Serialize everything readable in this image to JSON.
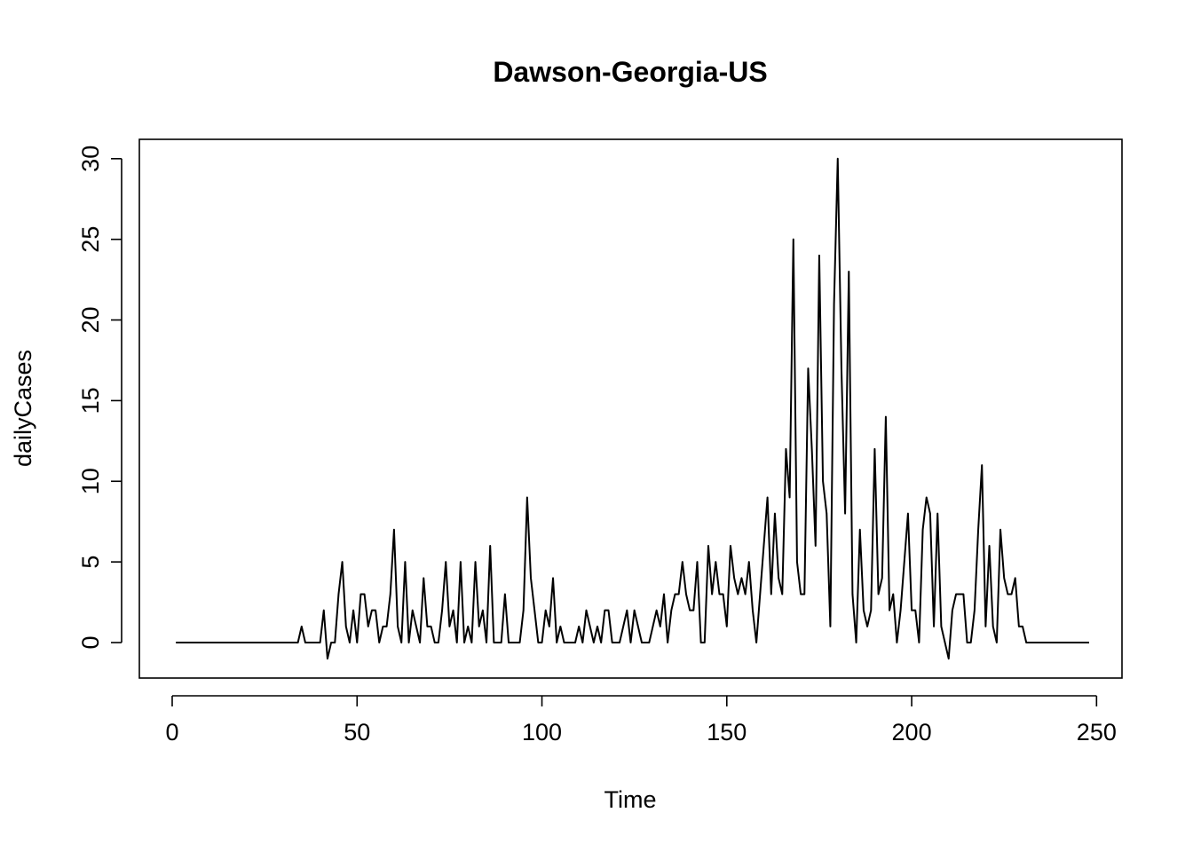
{
  "chart_data": {
    "type": "line",
    "title": "Dawson-Georgia-US",
    "xlabel": "Time",
    "ylabel": "dailyCases",
    "xlim": [
      -8.88,
      256.88
    ],
    "ylim": [
      -2.2,
      31.2
    ],
    "xticks": [
      0,
      50,
      100,
      150,
      200,
      250
    ],
    "yticks": [
      0,
      5,
      10,
      15,
      20,
      25,
      30
    ],
    "grid": false,
    "legend": "none",
    "series": [
      {
        "x": [
          1,
          2,
          3,
          4,
          5,
          6,
          7,
          8,
          9,
          10,
          11,
          12,
          13,
          14,
          15,
          16,
          17,
          18,
          19,
          20,
          21,
          22,
          23,
          24,
          25,
          26,
          27,
          28,
          29,
          30,
          31,
          32,
          33,
          34,
          35,
          36,
          37,
          38,
          39,
          40,
          41,
          42,
          43,
          44,
          45,
          46,
          47,
          48,
          49,
          50,
          51,
          52,
          53,
          54,
          55,
          56,
          57,
          58,
          59,
          60,
          61,
          62,
          63,
          64,
          65,
          66,
          67,
          68,
          69,
          70,
          71,
          72,
          73,
          74,
          75,
          76,
          77,
          78,
          79,
          80,
          81,
          82,
          83,
          84,
          85,
          86,
          87,
          88,
          89,
          90,
          91,
          92,
          93,
          94,
          95,
          96,
          97,
          98,
          99,
          100,
          101,
          102,
          103,
          104,
          105,
          106,
          107,
          108,
          109,
          110,
          111,
          112,
          113,
          114,
          115,
          116,
          117,
          118,
          119,
          120,
          121,
          122,
          123,
          124,
          125,
          126,
          127,
          128,
          129,
          130,
          131,
          132,
          133,
          134,
          135,
          136,
          137,
          138,
          139,
          140,
          141,
          142,
          143,
          144,
          145,
          146,
          147,
          148,
          149,
          150,
          151,
          152,
          153,
          154,
          155,
          156,
          157,
          158,
          159,
          160,
          161,
          162,
          163,
          164,
          165,
          166,
          167,
          168,
          169,
          170,
          171,
          172,
          173,
          174,
          175,
          176,
          177,
          178,
          179,
          180,
          181,
          182,
          183,
          184,
          185,
          186,
          187,
          188,
          189,
          190,
          191,
          192,
          193,
          194,
          195,
          196,
          197,
          198,
          199,
          200,
          201,
          202,
          203,
          204,
          205,
          206,
          207,
          208,
          209,
          210,
          211,
          212,
          213,
          214,
          215,
          216,
          217,
          218,
          219,
          220,
          221,
          222,
          223,
          224,
          225,
          226,
          227,
          228,
          229,
          230,
          231,
          232,
          233,
          234,
          235,
          236,
          237,
          238,
          239,
          240,
          241,
          242,
          243,
          244,
          245,
          246,
          247,
          248
        ],
        "values": [
          0,
          0,
          0,
          0,
          0,
          0,
          0,
          0,
          0,
          0,
          0,
          0,
          0,
          0,
          0,
          0,
          0,
          0,
          0,
          0,
          0,
          0,
          0,
          0,
          0,
          0,
          0,
          0,
          0,
          0,
          0,
          0,
          0,
          0,
          1,
          0,
          0,
          0,
          0,
          0,
          2,
          -1,
          0,
          0,
          3,
          5,
          1,
          0,
          2,
          0,
          3,
          3,
          1,
          2,
          2,
          0,
          1,
          1,
          3,
          7,
          1,
          0,
          5,
          0,
          2,
          1,
          0,
          4,
          1,
          1,
          0,
          0,
          2,
          5,
          1,
          2,
          0,
          5,
          0,
          1,
          0,
          5,
          1,
          2,
          0,
          6,
          0,
          0,
          0,
          3,
          0,
          0,
          0,
          0,
          2,
          9,
          4,
          2,
          0,
          0,
          2,
          1,
          4,
          0,
          1,
          0,
          0,
          0,
          0,
          1,
          0,
          2,
          1,
          0,
          1,
          0,
          2,
          2,
          0,
          0,
          0,
          1,
          2,
          0,
          2,
          1,
          0,
          0,
          0,
          1,
          2,
          1,
          3,
          0,
          2,
          3,
          3,
          5,
          3,
          2,
          2,
          5,
          0,
          0,
          6,
          3,
          5,
          3,
          3,
          1,
          6,
          4,
          3,
          4,
          3,
          5,
          2,
          0,
          3,
          6,
          9,
          3,
          8,
          4,
          3,
          12,
          9,
          25,
          5,
          3,
          3,
          17,
          12,
          6,
          24,
          10,
          8,
          1,
          21,
          30,
          17,
          8,
          23,
          3,
          0,
          7,
          2,
          1,
          2,
          12,
          3,
          4,
          14,
          2,
          3,
          0,
          2,
          5,
          8,
          2,
          2,
          0,
          7,
          9,
          8,
          1,
          8,
          1,
          0,
          -1,
          2,
          3,
          3,
          3,
          0,
          0,
          2,
          7,
          11,
          1,
          6,
          1,
          0,
          7,
          4,
          3,
          3,
          4,
          1,
          1,
          0,
          0,
          0,
          0,
          0,
          0,
          0,
          0,
          0,
          0,
          0,
          0,
          0,
          0,
          0,
          0,
          0,
          0
        ]
      }
    ]
  }
}
